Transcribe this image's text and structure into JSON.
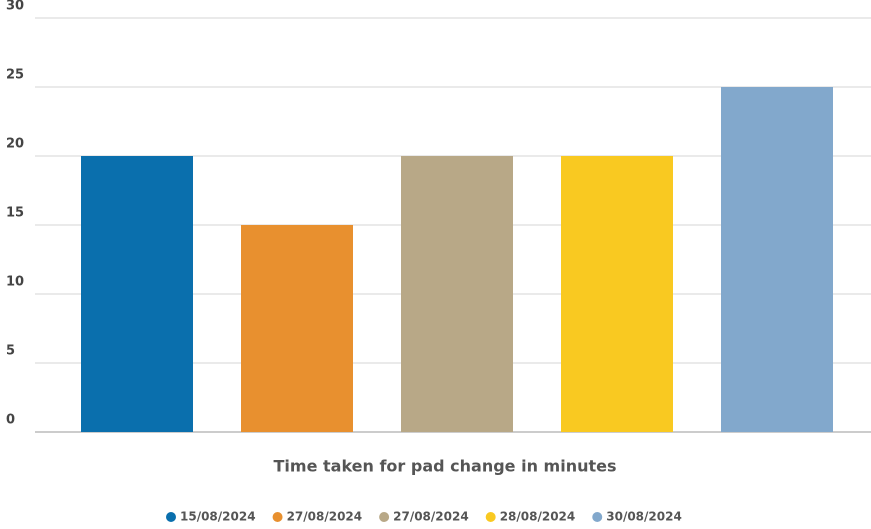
{
  "chart_data": {
    "type": "bar",
    "x_label": "Time taken for pad change in minutes",
    "series": [
      {
        "name": "15/08/2024",
        "color": "#0a6fad",
        "values": [
          20
        ]
      },
      {
        "name": "27/08/2024",
        "color": "#e8902f",
        "values": [
          15
        ]
      },
      {
        "name": "27/08/2024",
        "color": "#b8a887",
        "values": [
          20
        ]
      },
      {
        "name": "28/08/2024",
        "color": "#f9c921",
        "values": [
          20
        ]
      },
      {
        "name": "30/08/2024",
        "color": "#82a8cc",
        "values": [
          25
        ]
      }
    ],
    "ylim": [
      0,
      30
    ],
    "yticks": [
      0,
      5,
      10,
      15,
      20,
      25,
      30
    ],
    "grid": true,
    "legend": "bottom"
  }
}
